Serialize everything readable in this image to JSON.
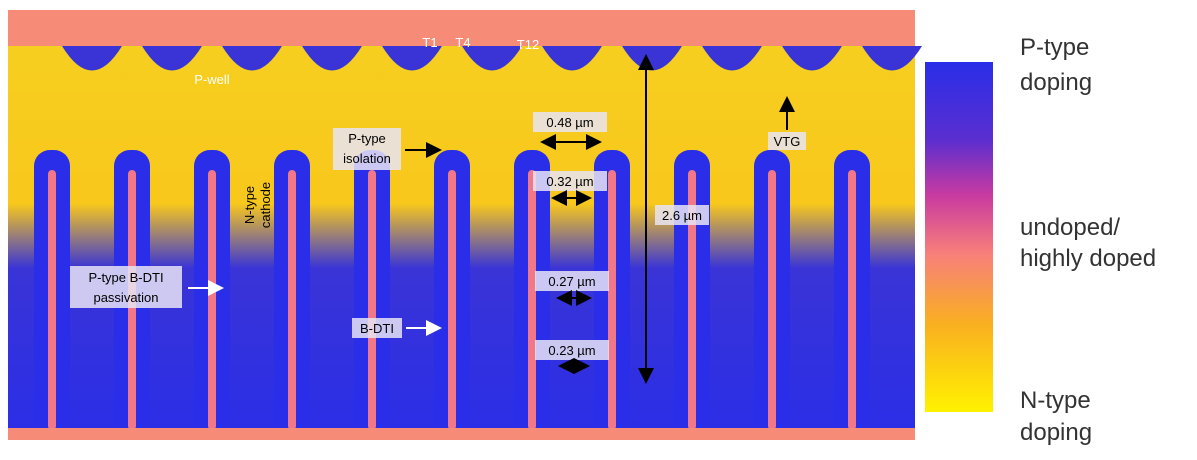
{
  "image": {
    "transistor_labels": [
      "T1",
      "T4",
      "T12"
    ],
    "p_well": "P-well",
    "p_isolation": [
      "P-type",
      "isolation"
    ],
    "vtg": "VTG",
    "n_cathode": [
      "N-type",
      "cathode"
    ],
    "passivation": [
      "P-type B-DTI",
      "passivation"
    ],
    "b_dti": "B-DTI",
    "widths": [
      "0.48 µm",
      "0.32 µm",
      "0.27 µm",
      "0.23 µm"
    ],
    "depth": "2.6 µm",
    "colorbar": {
      "top": [
        "P-type",
        "doping"
      ],
      "middle": [
        "undoped/",
        "highly doped"
      ],
      "bottom": [
        "N-type",
        "doping"
      ]
    }
  }
}
